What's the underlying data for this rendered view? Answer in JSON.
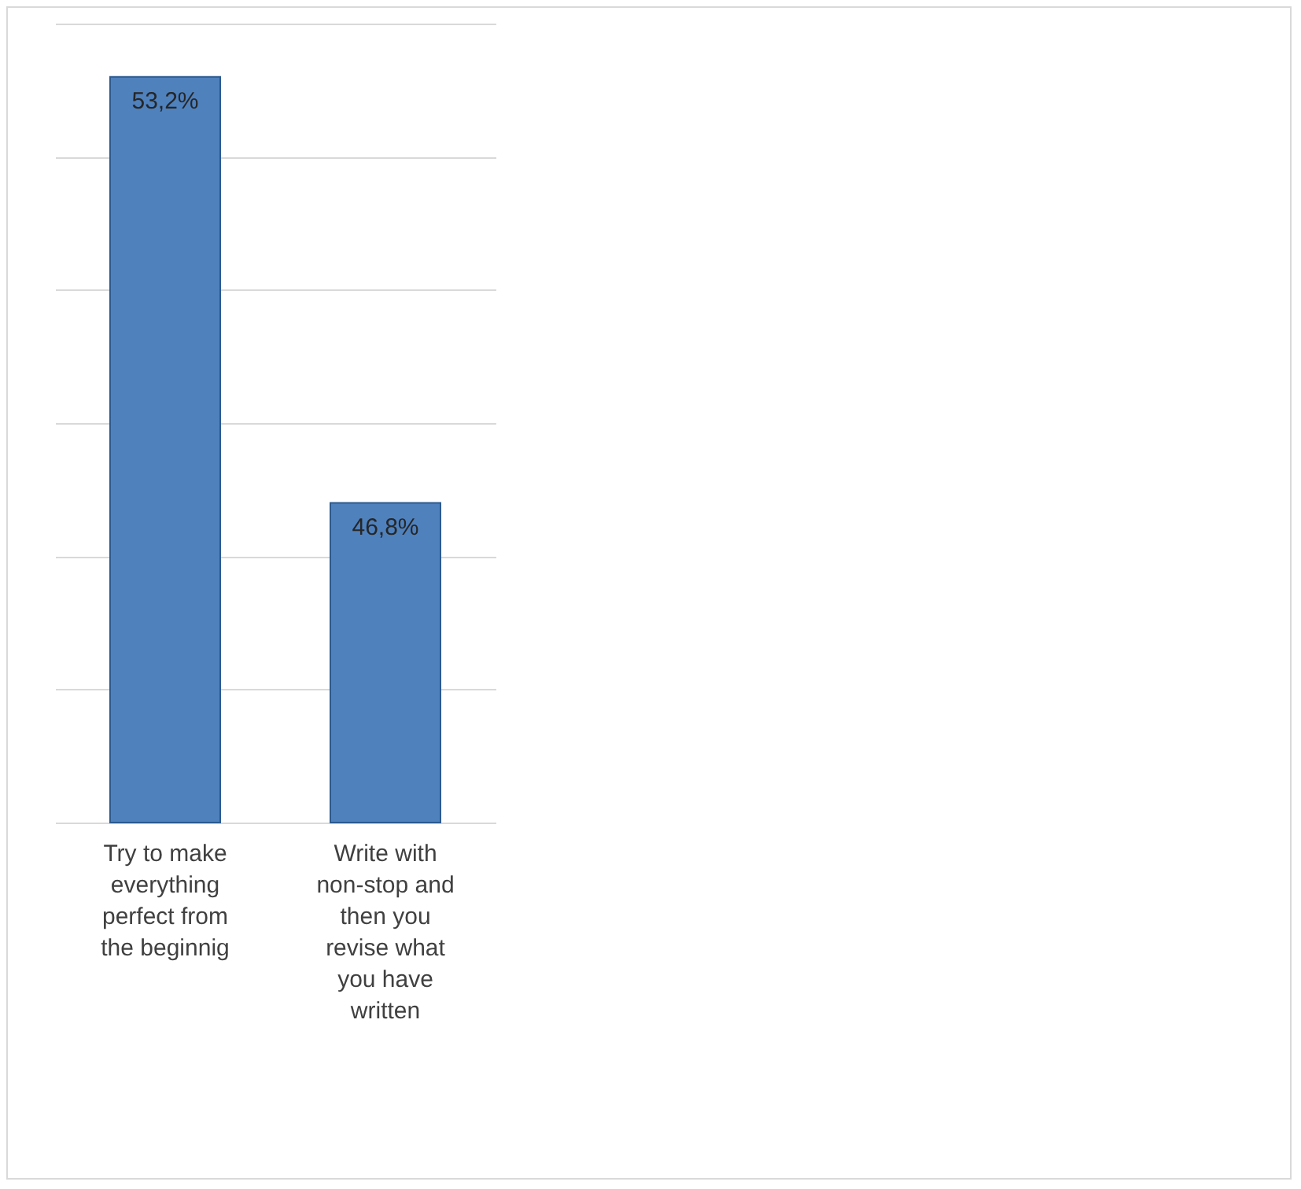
{
  "chart_data": {
    "type": "bar",
    "categories": [
      "Try to make everything perfect from the beginnig",
      "Write with non-stop and then you revise what you have written"
    ],
    "values": [
      53.2,
      46.8
    ],
    "value_labels": [
      "53,2%",
      "46,8%"
    ],
    "color": "#4f81bd",
    "ylim": [
      42,
      54
    ],
    "yticks": [
      {
        "value": 42,
        "label": null
      },
      {
        "value": 44,
        "label": null
      },
      {
        "value": 46,
        "label": null
      },
      {
        "value": 48,
        "label": null
      },
      {
        "value": 50,
        "label": null
      },
      {
        "value": 52,
        "label": null
      },
      {
        "value": 54,
        "label": null
      }
    ],
    "grid": "y",
    "tick_labels": "x"
  }
}
